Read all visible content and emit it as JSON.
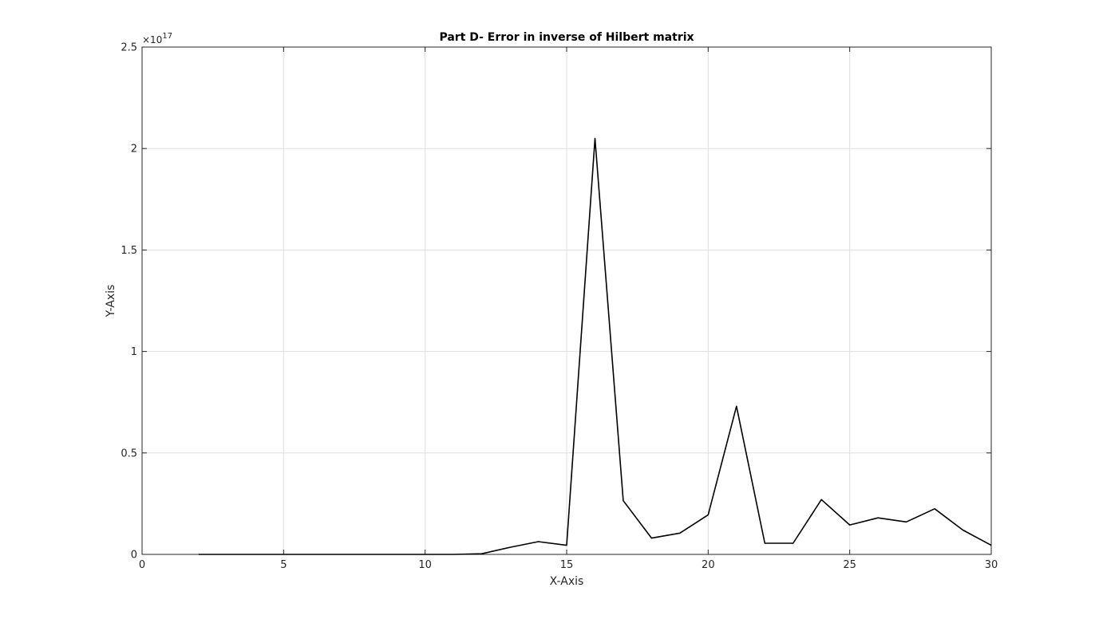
{
  "chart_data": {
    "type": "line",
    "title": "Part D- Error in inverse of Hilbert matrix",
    "xlabel": "X-Axis",
    "ylabel": "Y-Axis",
    "xlim": [
      0,
      30
    ],
    "ylim": [
      0,
      2.5
    ],
    "y_multiplier_base": "×10",
    "y_multiplier_exponent": "17",
    "grid": true,
    "legend": "none",
    "x_ticks": [
      0,
      5,
      10,
      15,
      20,
      25,
      30
    ],
    "x_tick_labels": [
      "0",
      "5",
      "10",
      "15",
      "20",
      "25",
      "30"
    ],
    "y_ticks": [
      0,
      0.5,
      1,
      1.5,
      2,
      2.5
    ],
    "y_tick_labels": [
      "0",
      "0.5",
      "1",
      "1.5",
      "2",
      "2.5"
    ],
    "series": [
      {
        "color": "#000000",
        "x": [
          2,
          3,
          4,
          5,
          6,
          7,
          8,
          9,
          10,
          11,
          12,
          13,
          14,
          15,
          16,
          17,
          18,
          19,
          20,
          21,
          22,
          23,
          24,
          25,
          26,
          27,
          28,
          29,
          30
        ],
        "y": [
          0,
          0,
          0,
          0,
          0,
          0,
          0,
          0,
          0,
          0,
          0.003,
          0.035,
          0.063,
          0.045,
          2.05,
          0.265,
          0.08,
          0.105,
          0.195,
          0.73,
          0.055,
          0.055,
          0.27,
          0.145,
          0.18,
          0.16,
          0.225,
          0.12,
          0.045
        ]
      }
    ]
  }
}
